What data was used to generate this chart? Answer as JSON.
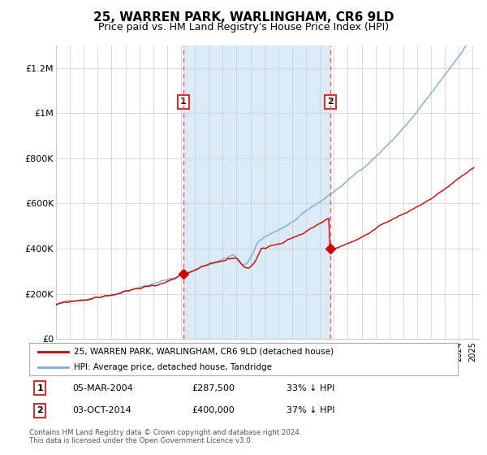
{
  "title": "25, WARREN PARK, WARLINGHAM, CR6 9LD",
  "subtitle": "Price paid vs. HM Land Registry's House Price Index (HPI)",
  "title_fontsize": 11,
  "subtitle_fontsize": 9,
  "red_line_color": "#cc0000",
  "blue_line_color": "#7dadd4",
  "blue_fill_color": "#daeaf7",
  "background_color": "#ffffff",
  "grid_color": "#cccccc",
  "vline_color": "#ff5555",
  "shade_start": 2004.17,
  "shade_end": 2014.75,
  "sale1_x": 2004.17,
  "sale1_y": 287500,
  "sale2_x": 2014.75,
  "sale2_y": 400000,
  "ylim": [
    0,
    1300000
  ],
  "xlim_start": 1995,
  "xlim_end": 2025.5,
  "legend_label_red": "25, WARREN PARK, WARLINGHAM, CR6 9LD (detached house)",
  "legend_label_blue": "HPI: Average price, detached house, Tandridge",
  "table_row1": [
    "1",
    "05-MAR-2004",
    "£287,500",
    "33% ↓ HPI"
  ],
  "table_row2": [
    "2",
    "03-OCT-2014",
    "£400,000",
    "37% ↓ HPI"
  ],
  "footnote": "Contains HM Land Registry data © Crown copyright and database right 2024.\nThis data is licensed under the Open Government Licence v3.0.",
  "ytick_labels": [
    "£0",
    "£200K",
    "£400K",
    "£600K",
    "£800K",
    "£1M",
    "£1.2M"
  ],
  "ytick_values": [
    0,
    200000,
    400000,
    600000,
    800000,
    1000000,
    1200000
  ]
}
